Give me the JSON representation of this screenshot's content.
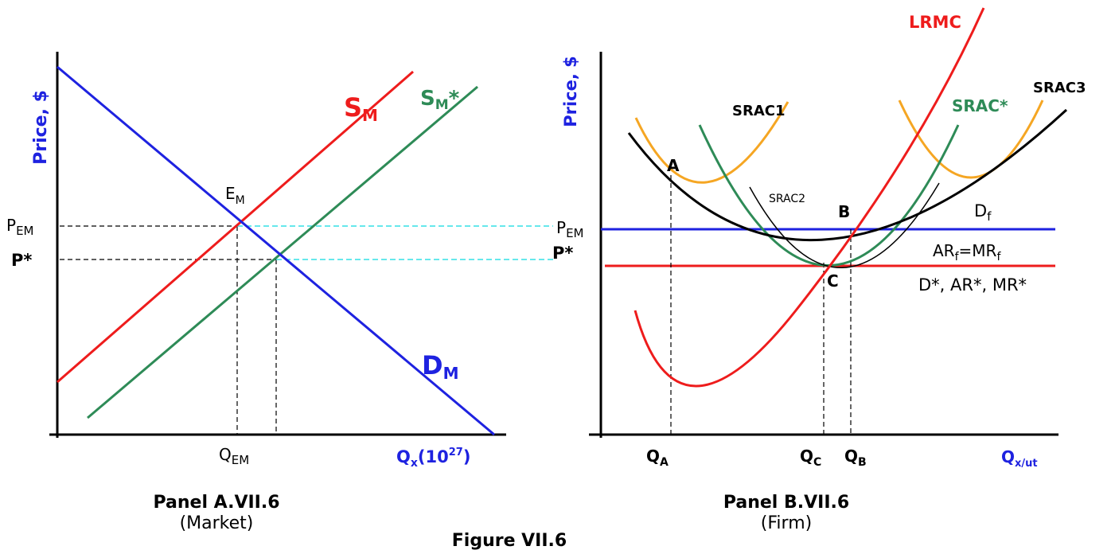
{
  "figure": {
    "title": "Figure VII.6",
    "colors": {
      "axis": "#000000",
      "demand_blue": "#1e22e0",
      "supply_red": "#ee1c1c",
      "supply_green": "#2e8b57",
      "srac_orange": "#f5a623",
      "guide_cyan": "#33e0e6",
      "curve_black": "#000000"
    }
  },
  "panel_a": {
    "caption_title": "Panel A.VII.6",
    "caption_sub": "(Market)",
    "y_axis_label": "Price, $",
    "x_axis_label_base": "Q",
    "x_axis_label_sub": "x",
    "x_axis_label_tail": "(10",
    "x_axis_label_exp": "27",
    "x_axis_label_close": ")",
    "supply_label_main": "S",
    "supply_label_sub": "M",
    "supply_star_label_main": "S",
    "supply_star_label_sub": "M",
    "supply_star_label_tail": "*",
    "demand_label_main": "D",
    "demand_label_sub": "M",
    "equilibrium_label_main": "E",
    "equilibrium_label_sub": "M",
    "price_em_main": "P",
    "price_em_sub": "EM",
    "price_star": "P*",
    "qty_em_main": "Q",
    "qty_em_sub": "EM"
  },
  "panel_b": {
    "caption_title": "Panel B.VII.6",
    "caption_sub": "(Firm)",
    "y_axis_label": "Price, $",
    "x_axis_label_base": "Q",
    "x_axis_label_sub": "x/ut",
    "lrmc_label": "LRMC",
    "srac1_label": "SRAC1",
    "srac2_label": "SRAC2",
    "srac_star_label": "SRAC*",
    "srac3_label": "SRAC3",
    "point_a": "A",
    "point_b": "B",
    "point_c": "C",
    "price_em_main": "P",
    "price_em_sub": "EM",
    "price_star": "P*",
    "df_main": "D",
    "df_sub": "f",
    "ar_main": "AR",
    "ar_sub": "f",
    "ar_eq": "=MR",
    "ar_eq_sub": "f",
    "dstar_label": "D*, AR*, MR*",
    "qa_main": "Q",
    "qa_sub": "A",
    "qc_main": "Q",
    "qc_sub": "C",
    "qb_main": "Q",
    "qb_sub": "B"
  }
}
